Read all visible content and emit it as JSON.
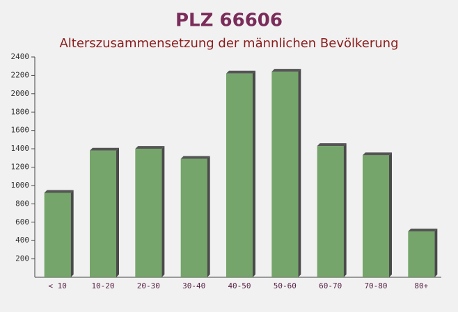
{
  "chart_data": {
    "type": "bar",
    "title": "PLZ 66606",
    "subtitle": "Alterszusammensetzung der männlichen Bevölkerung",
    "categories": [
      "< 10",
      "10-20",
      "20-30",
      "30-40",
      "40-50",
      "50-60",
      "60-70",
      "70-80",
      "80+"
    ],
    "values": [
      920,
      1380,
      1400,
      1290,
      2220,
      2240,
      1430,
      1330,
      500
    ],
    "color": "#6a9e5e",
    "ylim": [
      0,
      2400
    ],
    "yticks": [
      200,
      400,
      600,
      800,
      1000,
      1200,
      1400,
      1600,
      1800,
      2000,
      2200,
      2400
    ]
  }
}
